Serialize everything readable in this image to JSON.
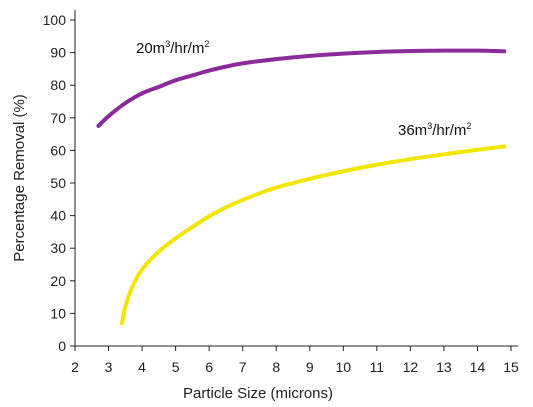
{
  "chart_data": {
    "type": "line",
    "title": "",
    "xlabel": "Particle Size (microns)",
    "ylabel": "Percentage Removal (%)",
    "xlim": [
      2,
      15
    ],
    "ylim": [
      0,
      100
    ],
    "x_ticks": [
      2,
      3,
      4,
      5,
      6,
      7,
      8,
      9,
      10,
      11,
      12,
      13,
      14,
      15
    ],
    "y_ticks": [
      0,
      10,
      20,
      30,
      40,
      50,
      60,
      70,
      80,
      90,
      100
    ],
    "grid": false,
    "legend": "none",
    "series": [
      {
        "name": "20m³/hr/m²",
        "label_base": "20m",
        "label_sup1": "3",
        "label_mid": "/hr/m",
        "label_sup2": "2",
        "color": "#8b2a9b",
        "x": [
          2.7,
          3.0,
          3.5,
          4.0,
          4.5,
          5.0,
          5.5,
          6.0,
          6.5,
          7.0,
          8.0,
          9.0,
          10.0,
          11.0,
          12.0,
          13.0,
          14.0,
          14.8
        ],
        "y": [
          67.5,
          70.5,
          74.5,
          77.5,
          79.5,
          81.5,
          83.0,
          84.5,
          85.7,
          86.7,
          88.0,
          89.0,
          89.7,
          90.2,
          90.5,
          90.6,
          90.6,
          90.4
        ]
      },
      {
        "name": "36m³/hr/m²",
        "label_base": "36m",
        "label_sup1": "3",
        "label_mid": "/hr/m",
        "label_sup2": "2",
        "color": "#f2e600",
        "x": [
          3.4,
          3.5,
          3.7,
          4.0,
          4.5,
          5.0,
          5.5,
          6.0,
          6.5,
          7.0,
          7.5,
          8.0,
          9.0,
          10.0,
          11.0,
          12.0,
          13.0,
          14.0,
          14.8
        ],
        "y": [
          7.0,
          12.0,
          18.0,
          23.5,
          29.0,
          33.0,
          36.5,
          39.8,
          42.5,
          44.8,
          46.8,
          48.6,
          51.3,
          53.6,
          55.6,
          57.3,
          58.8,
          60.2,
          61.2
        ]
      }
    ]
  }
}
